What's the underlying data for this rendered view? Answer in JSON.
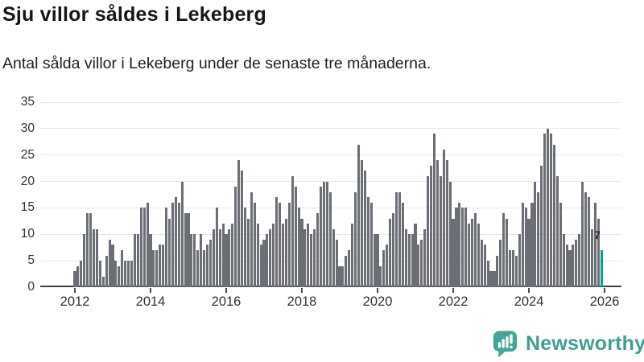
{
  "header": {
    "title": "Sju villor såldes i Lekeberg",
    "subtitle": "Antal sålda villor i Lekeberg under de senaste tre månaderna."
  },
  "chart_data": {
    "type": "bar",
    "title": "Sju villor såldes i Lekeberg",
    "xlabel": "",
    "ylabel": "",
    "unit": "sålda villor (rullande tre månader)",
    "frequency": "monthly",
    "start_month": "2012-01",
    "end_month": "2025-12",
    "values": [
      3,
      4,
      5,
      10,
      14,
      14,
      11,
      11,
      5,
      2,
      6,
      9,
      8,
      5,
      4,
      7,
      5,
      5,
      5,
      10,
      10,
      15,
      15,
      16,
      10,
      7,
      7,
      8,
      8,
      15,
      13,
      16,
      17,
      16,
      20,
      14,
      14,
      10,
      10,
      7,
      10,
      7,
      8,
      9,
      11,
      15,
      11,
      12,
      10,
      11,
      12,
      19,
      24,
      22,
      15,
      13,
      18,
      16,
      12,
      8,
      9,
      10,
      11,
      12,
      17,
      16,
      12,
      13,
      16,
      21,
      19,
      15,
      13,
      11,
      12,
      10,
      11,
      14,
      19,
      20,
      20,
      18,
      11,
      9,
      4,
      4,
      6,
      7,
      12,
      18,
      27,
      24,
      22,
      17,
      16,
      10,
      10,
      4,
      7,
      8,
      13,
      14,
      18,
      18,
      16,
      11,
      10,
      10,
      12,
      8,
      9,
      11,
      21,
      23,
      29,
      24,
      21,
      26,
      24,
      20,
      13,
      15,
      16,
      15,
      15,
      12,
      13,
      14,
      12,
      9,
      8,
      5,
      3,
      3,
      6,
      9,
      14,
      13,
      7,
      7,
      6,
      10,
      16,
      15,
      13,
      16,
      20,
      18,
      23,
      29,
      30,
      29,
      27,
      21,
      16,
      10,
      8,
      7,
      8,
      9,
      10,
      20,
      18,
      17,
      11,
      16,
      13,
      7
    ],
    "highlight_last": {
      "value": 7,
      "label": "7",
      "color": "#00a29b"
    },
    "bar_color": "#6b6f75",
    "y_ticks": [
      0,
      5,
      10,
      15,
      20,
      25,
      30,
      35
    ],
    "x_ticks": [
      "2012",
      "2014",
      "2016",
      "2018",
      "2020",
      "2022",
      "2024",
      "2026"
    ],
    "ylim": [
      0,
      35
    ],
    "grid": true,
    "legend": false
  },
  "annotation": {
    "last_value_label": "7"
  },
  "footer": {
    "brand": "Newsworthy"
  },
  "colors": {
    "bar": "#6b6f75",
    "highlight": "#00a29b",
    "gridline": "#e7e7e7",
    "axis": "#3f3f3f",
    "brand_teal": "#3fa092",
    "title_text": "#161616"
  }
}
